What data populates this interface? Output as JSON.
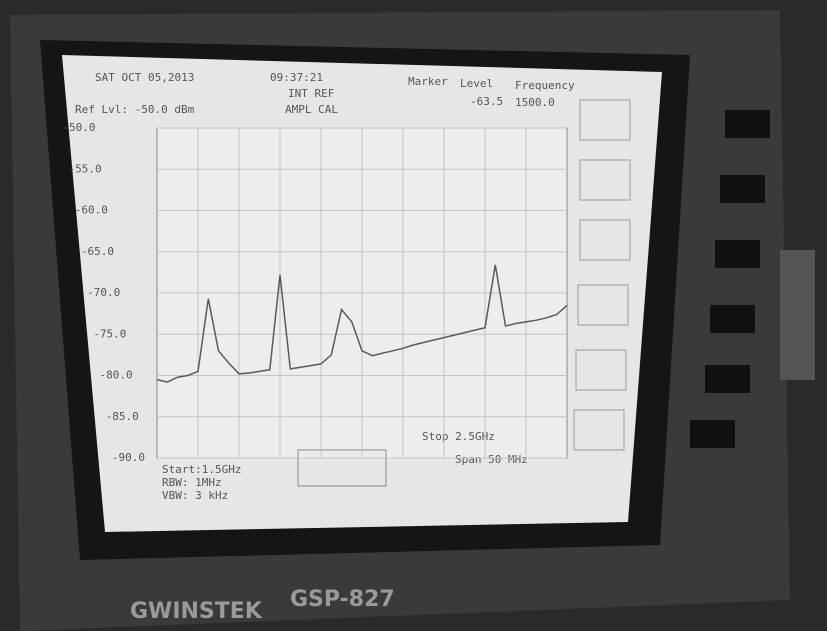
{
  "screen": {
    "date": "SAT OCT 05,2013",
    "time": "09:37:21",
    "ref_source": "INT REF",
    "ampl": "AMPL CAL",
    "ref_level": "Ref Lvl: -50.0 dBm",
    "marker_headers": [
      "Marker",
      "Level",
      "Frequency"
    ],
    "marker_values": [
      "-63.5",
      "1500.0"
    ],
    "footer_left": [
      "Start:1.5GHz",
      "RBW: 1MHz",
      "VBW: 3 kHz"
    ],
    "footer_center": "Stop 2.5GHz",
    "footer_right": "Span 50 MHz",
    "brand": "GWINSTEK",
    "model": "GSP-827"
  },
  "chart_data": {
    "type": "line",
    "color": "#5a5a5a",
    "grid": true,
    "values": [
      -80.5,
      -80.8,
      -80.2,
      -80,
      -79.5,
      -70.7,
      -77,
      -78.5,
      -79.8,
      -79.7,
      -79.5,
      -79.3,
      -67.8,
      -79.2,
      -79,
      -78.8,
      -78.6,
      -77.5,
      -72,
      -73.5,
      -77,
      -77.6,
      -77.3,
      -77,
      -76.7,
      -76.3,
      -76,
      -75.7,
      -75.4,
      -75.1,
      -74.8,
      -74.5,
      -74.2,
      -66.6,
      -74,
      -73.7,
      -73.5,
      -73.3,
      -73,
      -72.6,
      -71.5
    ],
    "ylim": [
      -90,
      -50
    ],
    "yticks": [
      {
        "value": -50,
        "label": "-50.0"
      },
      {
        "value": -55,
        "label": "-55.0"
      },
      {
        "value": -60,
        "label": "-60.0"
      },
      {
        "value": -65,
        "label": "-65.0"
      },
      {
        "value": -70,
        "label": "-70.0"
      },
      {
        "value": -75,
        "label": "-75.0"
      },
      {
        "value": -80,
        "label": "-80.0"
      },
      {
        "value": -85,
        "label": "-85.0"
      },
      {
        "value": -90,
        "label": "-90.0"
      }
    ]
  }
}
